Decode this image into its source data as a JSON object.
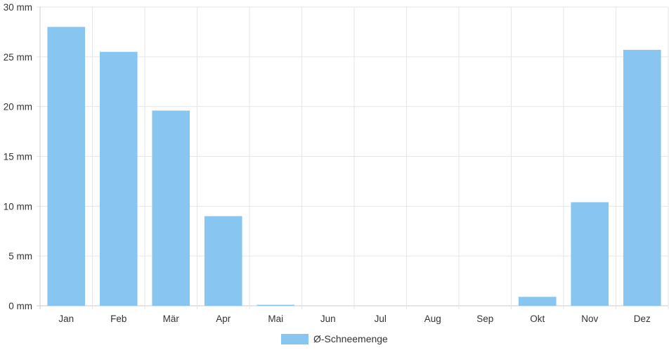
{
  "chart_data": {
    "type": "bar",
    "title": "",
    "xlabel": "",
    "ylabel": "",
    "categories": [
      "Jan",
      "Feb",
      "Mär",
      "Apr",
      "Mai",
      "Jun",
      "Jul",
      "Aug",
      "Sep",
      "Okt",
      "Nov",
      "Dez"
    ],
    "series": [
      {
        "name": "Ø-Schneemenge",
        "values": [
          28,
          25.5,
          19.6,
          9,
          0.1,
          0,
          0,
          0,
          0,
          0.9,
          10.4,
          25.7
        ]
      }
    ],
    "ylim": [
      0,
      30
    ],
    "y_ticks": [
      "0 mm",
      "5 mm",
      "10 mm",
      "15 mm",
      "20 mm",
      "25 mm",
      "30 mm"
    ],
    "y_tick_values": [
      0,
      5,
      10,
      15,
      20,
      25,
      30
    ],
    "grid": true,
    "legend_position": "bottom-center",
    "colors": {
      "bar": "#88c5f1",
      "grid": "#e6e6e6",
      "axis": "#cccccc",
      "text": "#333333"
    }
  }
}
